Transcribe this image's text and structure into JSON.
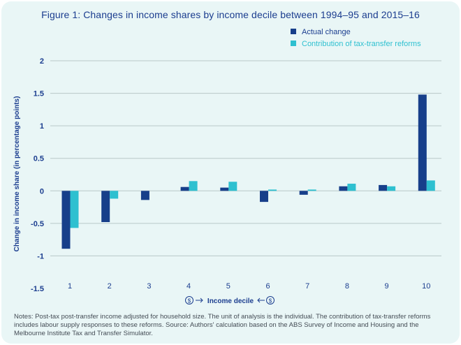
{
  "chart_data": {
    "type": "bar",
    "title": "Figure 1: Changes in income shares by income decile between 1994–95 and 2015–16",
    "xlabel": "Income decile",
    "ylabel": "Change in income share (in percentage points)",
    "categories": [
      "1",
      "2",
      "3",
      "4",
      "5",
      "6",
      "7",
      "8",
      "9",
      "10"
    ],
    "series": [
      {
        "name": "Actual change",
        "color": "#173f8a",
        "values": [
          -0.89,
          -0.48,
          -0.14,
          0.06,
          0.05,
          -0.17,
          -0.06,
          0.07,
          0.09,
          1.48
        ]
      },
      {
        "name": "Contribution of tax-transfer reforms",
        "color": "#2ec0d0",
        "values": [
          -0.57,
          -0.12,
          null,
          0.15,
          0.14,
          0.02,
          0.02,
          0.11,
          0.07,
          0.16
        ]
      }
    ],
    "ylim": [
      -1.5,
      2
    ],
    "yticks": [
      2,
      1.5,
      1,
      0.5,
      0,
      -0.5,
      -1,
      -1.5
    ],
    "ytick_labels": [
      "2",
      "1.5",
      "1",
      "0.5",
      "0",
      "-0.5",
      "-1",
      "-1.5"
    ],
    "grid": true,
    "legend_position": "top-right"
  },
  "notes": "Notes: Post-tax post-transfer income adjusted for household size. The unit of analysis is the individual. The contribution of tax-transfer reforms includes labour supply responses to these reforms. Source: Authors' calculation based on the ABS Survey of Income and Housing and the Melbourne Institute Tax and Transfer Simulator.",
  "icons": {
    "xlabel_decoration": "dollar-arrow-icon"
  }
}
